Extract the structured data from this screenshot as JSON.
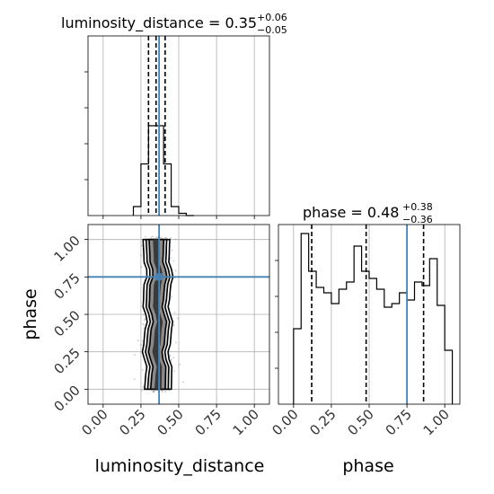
{
  "chart_data": {
    "type": "corner",
    "parameters": [
      "luminosity_distance",
      "phase"
    ],
    "panels": [
      {
        "name": "luminosity_distance-marginal",
        "type": "histogram",
        "title": {
          "label": "luminosity_distance = 0.35",
          "upper": "+0.06",
          "lower": "−0.05"
        },
        "xlim": [
          -0.1,
          1.1
        ],
        "ylim": [
          0,
          80
        ],
        "grid": true,
        "bins": [
          0.2,
          0.25,
          0.3,
          0.35,
          0.4,
          0.45,
          0.5,
          0.55,
          0.6
        ],
        "counts": [
          4,
          23,
          40,
          40,
          23,
          4,
          1,
          0
        ],
        "quantiles": [
          0.3,
          0.35,
          0.41
        ],
        "truth": 0.37
      },
      {
        "name": "phase-marginal",
        "type": "histogram",
        "title": {
          "label": "phase = 0.48",
          "upper": "+0.38",
          "lower": "−0.36"
        },
        "xlim": [
          -0.1,
          1.1
        ],
        "ylim": [
          0,
          1
        ],
        "grid": true,
        "bins": [
          0.0,
          0.05,
          0.1,
          0.15,
          0.2,
          0.25,
          0.3,
          0.35,
          0.4,
          0.45,
          0.5,
          0.55,
          0.6,
          0.65,
          0.7,
          0.75,
          0.8,
          0.85,
          0.9,
          0.95,
          1.0,
          1.05
        ],
        "counts": [
          0.42,
          0.95,
          0.74,
          0.65,
          0.62,
          0.56,
          0.64,
          0.68,
          0.88,
          0.74,
          0.7,
          0.64,
          0.54,
          0.56,
          0.62,
          0.58,
          0.68,
          0.66,
          0.81,
          0.55,
          0.3
        ],
        "quantiles": [
          0.12,
          0.48,
          0.86
        ],
        "truth": 0.75
      },
      {
        "name": "joint-scatter",
        "type": "2d-contour",
        "x": "luminosity_distance",
        "y": "phase",
        "xlim": [
          -0.1,
          1.1
        ],
        "ylim": [
          -0.1,
          1.1
        ],
        "grid": true,
        "truth": {
          "x": 0.37,
          "y": 0.75
        }
      }
    ],
    "x_ticks": [
      "0.00",
      "0.25",
      "0.50",
      "0.75",
      "1.00"
    ],
    "y_ticks": [
      "0.00",
      "0.25",
      "0.50",
      "0.75",
      "1.00"
    ],
    "xlabel_left": "luminosity_distance",
    "xlabel_right": "phase",
    "ylabel": "phase",
    "colors": {
      "truth": "#4682b4",
      "hist": "#000000",
      "grid": "#b0b0b0",
      "scatter": "#606060"
    }
  }
}
